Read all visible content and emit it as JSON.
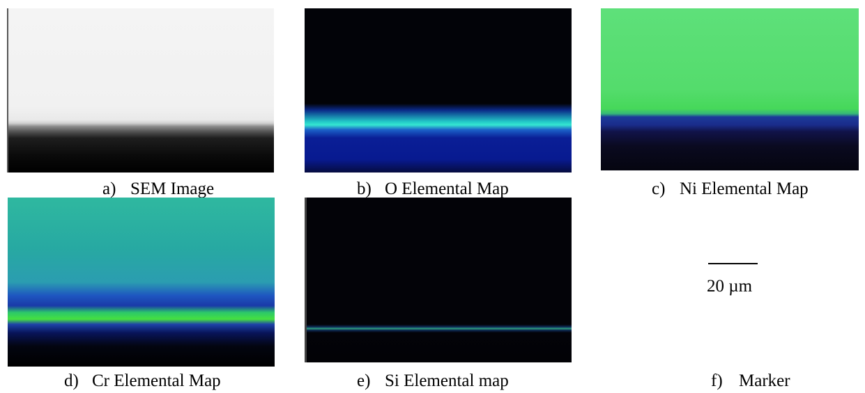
{
  "panels": {
    "a": {
      "letter": "a)",
      "title": "SEM Image"
    },
    "b": {
      "letter": "b)",
      "title": "O Elemental Map"
    },
    "c": {
      "letter": "c)",
      "title": "Ni Elemental Map"
    },
    "d": {
      "letter": "d)",
      "title": "Cr Elemental Map"
    },
    "e": {
      "letter": "e)",
      "title": "Si Elemental map"
    },
    "f": {
      "letter": "f)",
      "title": "Marker"
    }
  },
  "scale_bar": {
    "label": "20 µm"
  },
  "colors": {
    "background": "#ffffff",
    "sem_bright": "#f1f1f1",
    "map_dark": "#020308",
    "map_blue": "#0a1e96",
    "map_cyan": "#35e6d0",
    "map_green": "#54dc6c"
  }
}
